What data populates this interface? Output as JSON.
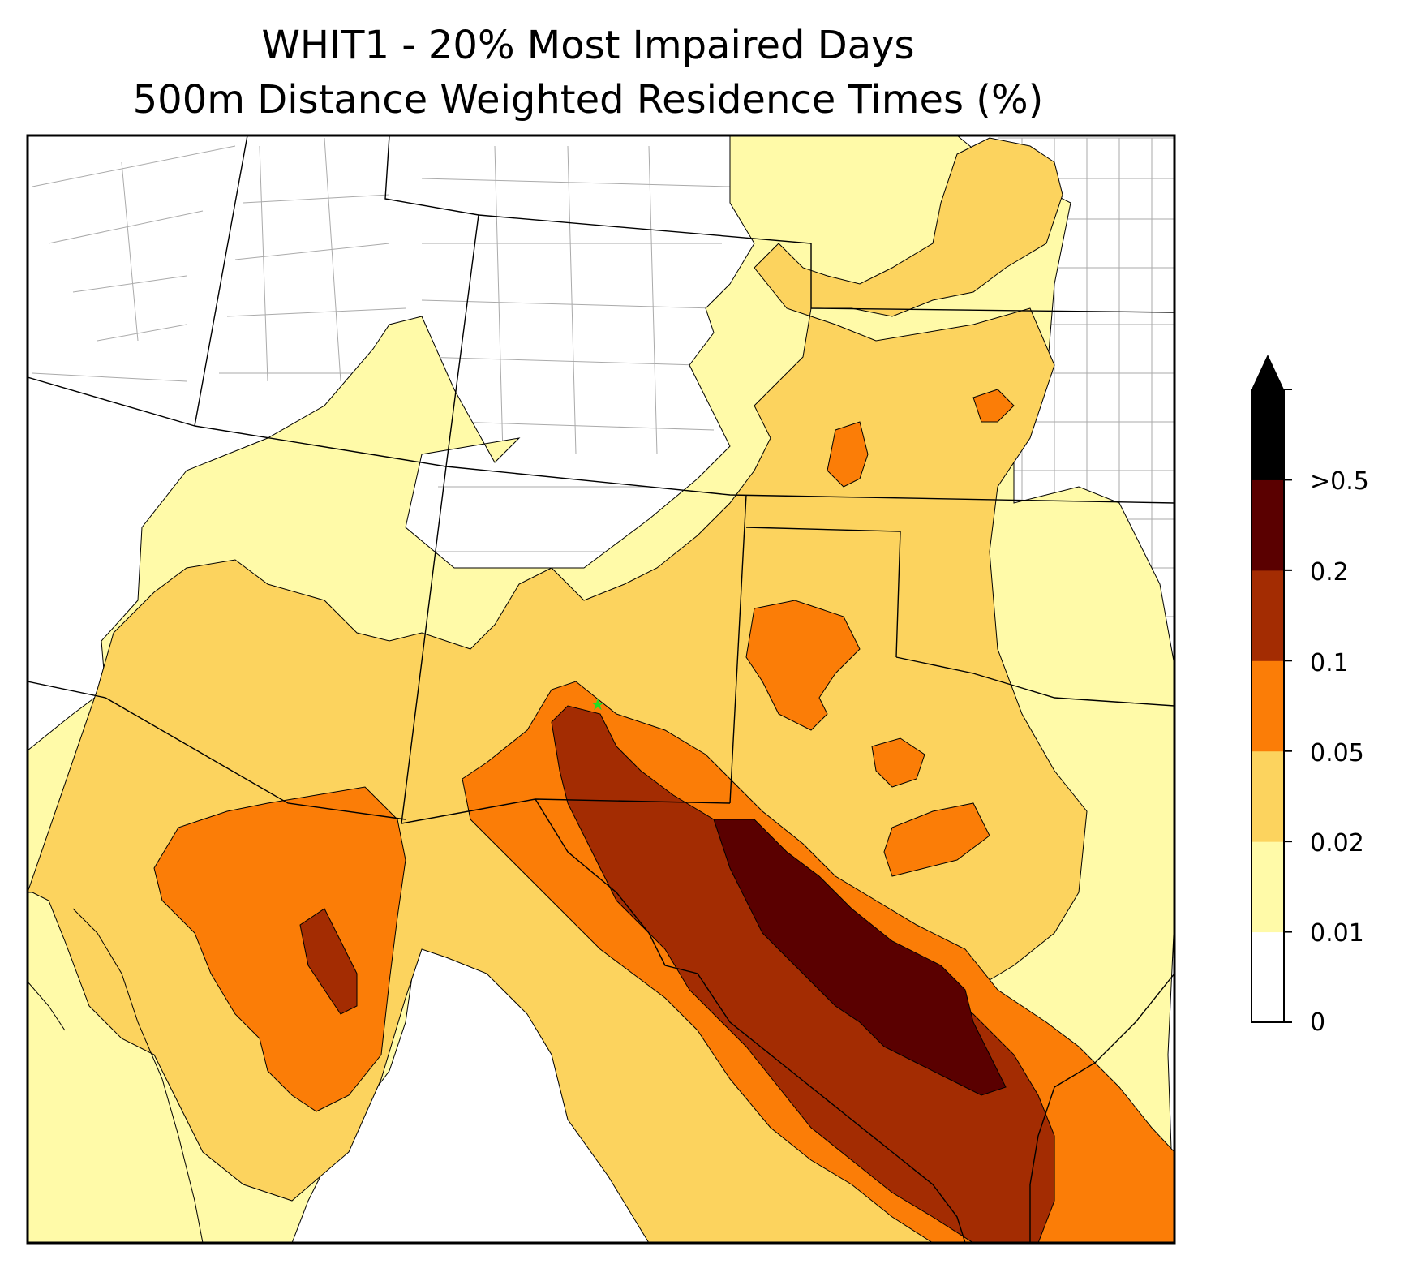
{
  "figure": {
    "title_line1": "WHIT1 - 20% Most Impaired Days",
    "title_line2": "500m Distance Weighted Residence Times (%)"
  },
  "colorbar": {
    "levels": [
      "0",
      "0.01",
      "0.02",
      "0.05",
      "0.1",
      "0.2",
      ">0.5"
    ],
    "colors": [
      "#ffffff",
      "#fffaa8",
      "#fcd35e",
      "#fb7d07",
      "#a32c02",
      "#5a0000",
      "#000000"
    ],
    "extend": "max"
  },
  "site": {
    "marker": "star",
    "color": "#22dd22"
  },
  "palette": {
    "contour_line": "#000000",
    "state_border": "#000000",
    "county_border": "#aaaaaa"
  }
}
